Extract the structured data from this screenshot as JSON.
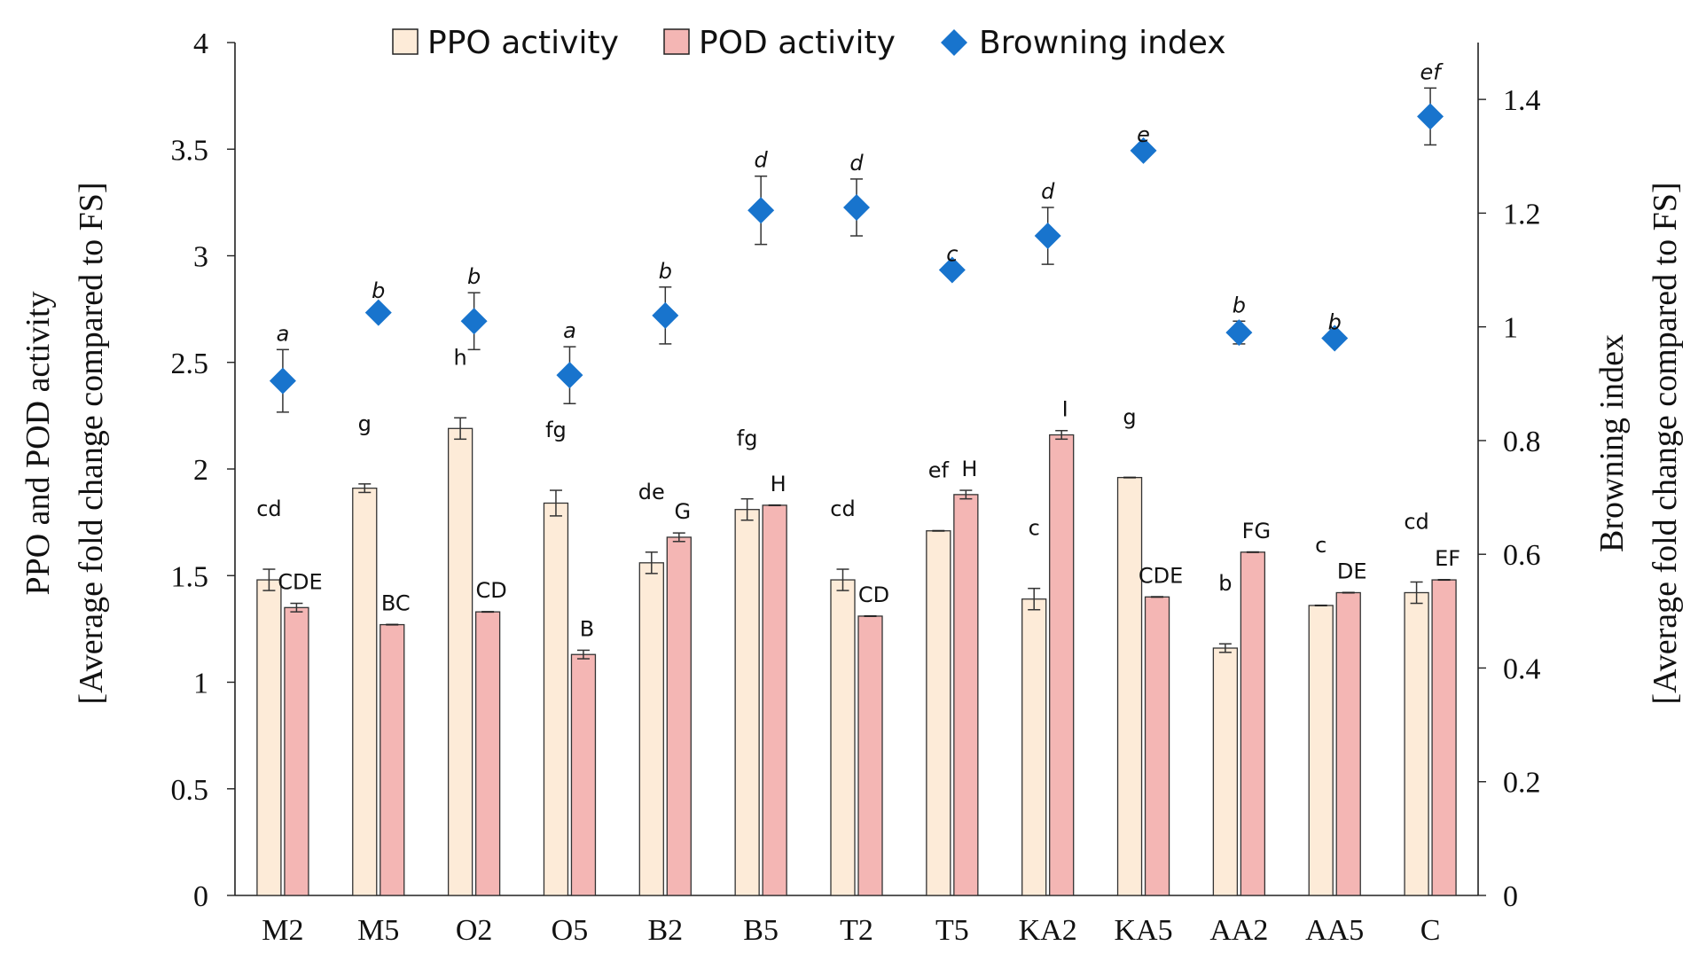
{
  "chart_data": {
    "type": "bar",
    "categories": [
      "M2",
      "M5",
      "O2",
      "O5",
      "B2",
      "B5",
      "T2",
      "T5",
      "KA2",
      "KA5",
      "AA2",
      "AA5",
      "C"
    ],
    "series": [
      {
        "name": "PPO activity",
        "kind": "bar",
        "axis": "left",
        "color": "#fdebd8",
        "values": [
          1.48,
          1.91,
          2.19,
          1.84,
          1.56,
          1.81,
          1.48,
          1.71,
          1.39,
          1.96,
          1.16,
          1.36,
          1.42
        ],
        "errors": [
          0.05,
          0.02,
          0.05,
          0.06,
          0.05,
          0.05,
          0.05,
          0.0,
          0.05,
          0.0,
          0.02,
          0.0,
          0.05
        ],
        "letters": [
          "cd",
          "g",
          "h",
          "fg",
          "de",
          "fg",
          "cd",
          "ef",
          "c",
          "g",
          "b",
          "c",
          "cd"
        ]
      },
      {
        "name": "POD activity",
        "kind": "bar",
        "axis": "left",
        "color": "#f4b6b4",
        "values": [
          1.35,
          1.27,
          1.33,
          1.13,
          1.68,
          1.83,
          1.31,
          1.88,
          2.16,
          1.4,
          1.61,
          1.42,
          1.48
        ],
        "errors": [
          0.02,
          0.0,
          0.0,
          0.02,
          0.02,
          0.0,
          0.0,
          0.02,
          0.02,
          0.0,
          0.0,
          0.0,
          0.0
        ],
        "letters": [
          "CDE",
          "BC",
          "CD",
          "B",
          "G",
          "H",
          "CD",
          "H",
          "I",
          "CDE",
          "FG",
          "DE",
          "EF"
        ]
      },
      {
        "name": "Browning index",
        "kind": "scatter",
        "axis": "right",
        "color": "#1874cd",
        "values": [
          0.905,
          1.025,
          1.01,
          0.915,
          1.02,
          1.205,
          1.21,
          1.1,
          1.16,
          1.31,
          0.99,
          0.98,
          1.37
        ],
        "errors": [
          0.055,
          0.01,
          0.05,
          0.05,
          0.05,
          0.06,
          0.05,
          0.0,
          0.05,
          0.0,
          0.02,
          0.0,
          0.05
        ],
        "letters": [
          "a",
          "b",
          "b",
          "a",
          "b",
          "d",
          "d",
          "c",
          "d",
          "e",
          "b",
          "b",
          "ef"
        ]
      }
    ],
    "y_left": {
      "label_lines": [
        "PPO and POD activity",
        "[Average fold change compared to FS]"
      ],
      "lim": [
        0,
        4
      ],
      "ticks": [
        0,
        0.5,
        1,
        1.5,
        2,
        2.5,
        3,
        3.5,
        4
      ],
      "tick_labels": [
        "0",
        "0.5",
        "1",
        "1.5",
        "2",
        "2.5",
        "3",
        "3.5",
        "4"
      ]
    },
    "y_right": {
      "label_lines": [
        "Browning index",
        "[Average fold change compared to FS]"
      ],
      "lim": [
        0,
        1.5
      ],
      "ticks": [
        0,
        0.2,
        0.4,
        0.6,
        0.8,
        1,
        1.2,
        1.4
      ],
      "tick_labels": [
        "0",
        "0.2",
        "0.4",
        "0.6",
        "0.8",
        "1",
        "1.2",
        "1.4"
      ]
    },
    "legend": [
      "PPO activity",
      "POD activity",
      "Browning index"
    ],
    "legend_position": "top-center",
    "grid": false
  }
}
